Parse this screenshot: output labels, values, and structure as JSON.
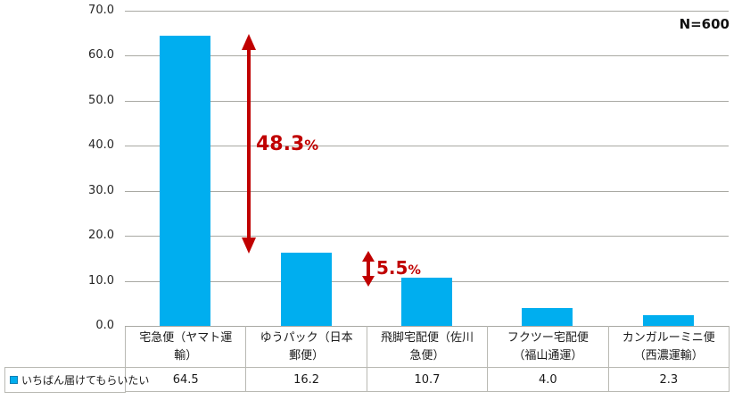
{
  "chart_data": {
    "type": "bar",
    "title": "",
    "sample_size": "N=600",
    "categories": [
      "宅急便（ヤマト運輸）",
      "ゆうパック（日本郵便）",
      "飛脚宅配便（佐川急便）",
      "フクツー宅配便（福山通運）",
      "カンガルーミニ便（西濃運輸）"
    ],
    "series": [
      {
        "name": "いちばん届けてもらいたい",
        "values": [
          64.5,
          16.2,
          10.7,
          4.0,
          2.3
        ]
      }
    ],
    "display_values": [
      "64.5",
      "16.2",
      "10.7",
      "4.0",
      "2.3"
    ],
    "yticks": [
      "70.0",
      "60.0",
      "50.0",
      "40.0",
      "30.0",
      "20.0",
      "10.0",
      "0.0"
    ],
    "ylim": [
      0,
      70
    ],
    "grid": true,
    "legend_position": "bottom-left",
    "bar_color": "#00aeef",
    "annotation_color": "#c00000",
    "annotations": [
      {
        "value": "48.3",
        "unit": "%"
      },
      {
        "value": "5.5",
        "unit": "%"
      }
    ]
  }
}
